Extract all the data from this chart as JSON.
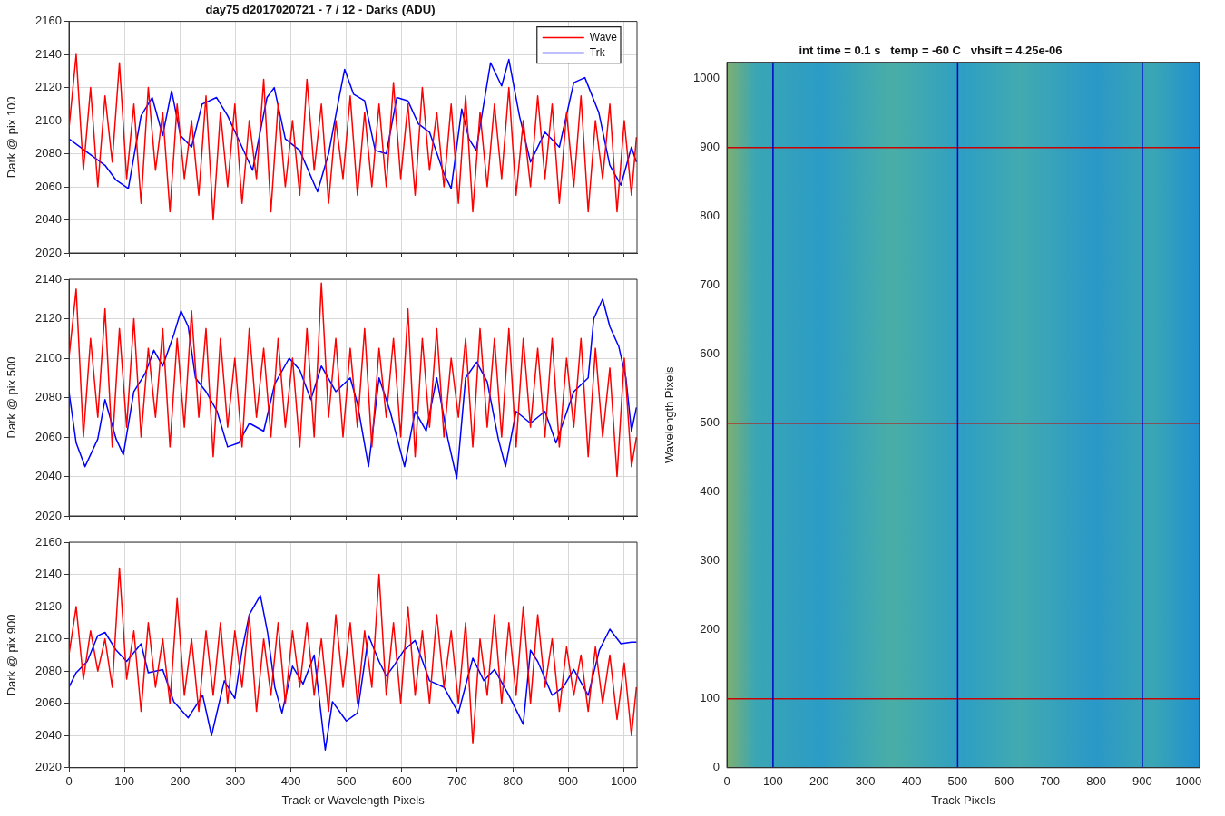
{
  "chart_data": [
    {
      "type": "line",
      "title": "day75 d2017020721 - 7 / 12 - Darks (ADU)",
      "ylabel": "Dark @ pix 100",
      "xlim": [
        0,
        1024
      ],
      "xticks": [
        0,
        100,
        200,
        300,
        400,
        500,
        600,
        700,
        800,
        900,
        1000
      ],
      "ylim": [
        2020,
        2160
      ],
      "yticks": [
        2020,
        2040,
        2060,
        2080,
        2100,
        2120,
        2140,
        2160
      ],
      "grid": true,
      "legend": "top right",
      "tick_labels": "y",
      "series": [
        {
          "name": "Wave",
          "color": "#ff0000",
          "x": [
            0,
            13,
            26,
            39,
            52,
            65,
            78,
            91,
            104,
            117,
            130,
            143,
            156,
            169,
            182,
            195,
            208,
            221,
            234,
            247,
            260,
            273,
            286,
            299,
            312,
            325,
            338,
            351,
            364,
            377,
            390,
            403,
            416,
            429,
            442,
            455,
            468,
            481,
            494,
            507,
            520,
            533,
            546,
            559,
            572,
            585,
            598,
            611,
            624,
            637,
            650,
            663,
            676,
            689,
            702,
            715,
            728,
            741,
            754,
            767,
            780,
            793,
            806,
            819,
            832,
            845,
            858,
            871,
            884,
            897,
            910,
            923,
            936,
            949,
            962,
            975,
            988,
            1001,
            1014,
            1023
          ],
          "values": [
            2095,
            2140,
            2070,
            2120,
            2060,
            2115,
            2075,
            2135,
            2065,
            2110,
            2050,
            2120,
            2070,
            2105,
            2045,
            2110,
            2065,
            2100,
            2055,
            2115,
            2040,
            2105,
            2060,
            2110,
            2050,
            2100,
            2065,
            2125,
            2045,
            2110,
            2060,
            2100,
            2055,
            2125,
            2070,
            2110,
            2050,
            2100,
            2065,
            2115,
            2055,
            2105,
            2060,
            2110,
            2060,
            2123,
            2065,
            2110,
            2055,
            2120,
            2070,
            2105,
            2060,
            2110,
            2050,
            2115,
            2045,
            2105,
            2060,
            2110,
            2065,
            2120,
            2055,
            2100,
            2060,
            2115,
            2065,
            2110,
            2050,
            2105,
            2060,
            2115,
            2045,
            2100,
            2065,
            2110,
            2045,
            2100,
            2055,
            2090
          ]
        },
        {
          "name": "Trk",
          "color": "#0000ff",
          "x": [
            0,
            65,
            85,
            107,
            130,
            150,
            169,
            185,
            201,
            221,
            240,
            266,
            286,
            312,
            331,
            357,
            370,
            390,
            416,
            448,
            468,
            487,
            497,
            513,
            533,
            552,
            572,
            591,
            611,
            630,
            650,
            676,
            689,
            708,
            721,
            734,
            760,
            780,
            793,
            812,
            832,
            858,
            884,
            910,
            930,
            955,
            975,
            995,
            1014,
            1023
          ],
          "values": [
            2089,
            2073,
            2064,
            2059,
            2103,
            2114,
            2091,
            2118,
            2091,
            2084,
            2110,
            2114,
            2103,
            2084,
            2070,
            2114,
            2120,
            2089,
            2082,
            2057,
            2080,
            2114,
            2131,
            2116,
            2112,
            2082,
            2080,
            2114,
            2112,
            2098,
            2093,
            2068,
            2059,
            2107,
            2089,
            2082,
            2135,
            2121,
            2137,
            2103,
            2075,
            2093,
            2084,
            2123,
            2126,
            2105,
            2073,
            2061,
            2084,
            2075
          ]
        }
      ]
    },
    {
      "type": "line",
      "ylabel": "Dark @ pix 500",
      "xlim": [
        0,
        1024
      ],
      "xticks": [
        0,
        100,
        200,
        300,
        400,
        500,
        600,
        700,
        800,
        900,
        1000
      ],
      "ylim": [
        2020,
        2140
      ],
      "yticks": [
        2020,
        2040,
        2060,
        2080,
        2100,
        2120,
        2140
      ],
      "grid": true,
      "tick_labels": "y",
      "series": [
        {
          "color": "#ff0000",
          "x": [
            0,
            13,
            26,
            39,
            52,
            65,
            78,
            91,
            104,
            117,
            130,
            143,
            156,
            169,
            182,
            195,
            208,
            221,
            234,
            247,
            260,
            273,
            286,
            299,
            312,
            325,
            338,
            351,
            364,
            377,
            390,
            403,
            416,
            429,
            442,
            455,
            468,
            481,
            494,
            507,
            520,
            533,
            546,
            559,
            572,
            585,
            598,
            611,
            624,
            637,
            650,
            663,
            676,
            689,
            702,
            715,
            728,
            741,
            754,
            767,
            780,
            793,
            806,
            819,
            832,
            845,
            858,
            871,
            884,
            897,
            910,
            923,
            936,
            949,
            962,
            975,
            988,
            1001,
            1014,
            1023
          ],
          "values": [
            2100,
            2135,
            2060,
            2110,
            2070,
            2125,
            2055,
            2115,
            2065,
            2120,
            2060,
            2105,
            2070,
            2115,
            2055,
            2110,
            2065,
            2124,
            2070,
            2115,
            2050,
            2110,
            2065,
            2100,
            2055,
            2115,
            2070,
            2105,
            2060,
            2110,
            2065,
            2100,
            2055,
            2115,
            2060,
            2138,
            2070,
            2110,
            2060,
            2105,
            2065,
            2115,
            2055,
            2105,
            2070,
            2110,
            2060,
            2125,
            2050,
            2110,
            2065,
            2115,
            2060,
            2100,
            2070,
            2110,
            2055,
            2115,
            2065,
            2110,
            2060,
            2115,
            2055,
            2110,
            2065,
            2105,
            2060,
            2110,
            2055,
            2100,
            2065,
            2110,
            2050,
            2105,
            2060,
            2095,
            2040,
            2100,
            2045,
            2060
          ]
        },
        {
          "color": "#0000ff",
          "x": [
            0,
            13,
            29,
            52,
            65,
            85,
            98,
            117,
            137,
            153,
            169,
            189,
            202,
            215,
            228,
            247,
            267,
            286,
            306,
            325,
            351,
            371,
            397,
            416,
            436,
            455,
            481,
            507,
            520,
            540,
            559,
            579,
            605,
            624,
            644,
            663,
            683,
            699,
            715,
            735,
            754,
            774,
            787,
            806,
            832,
            858,
            878,
            910,
            936,
            946,
            962,
            975,
            991,
            1004,
            1014,
            1023
          ],
          "values": [
            2083,
            2057,
            2045,
            2059,
            2079,
            2059,
            2051,
            2083,
            2092,
            2104,
            2096,
            2112,
            2124,
            2116,
            2090,
            2083,
            2073,
            2055,
            2057,
            2067,
            2063,
            2087,
            2100,
            2094,
            2079,
            2096,
            2083,
            2090,
            2077,
            2045,
            2090,
            2073,
            2045,
            2073,
            2063,
            2090,
            2059,
            2039,
            2090,
            2098,
            2088,
            2059,
            2045,
            2073,
            2067,
            2073,
            2057,
            2083,
            2090,
            2120,
            2130,
            2116,
            2106,
            2090,
            2063,
            2075
          ]
        }
      ]
    },
    {
      "type": "line",
      "xlabel": "Track or Wavelength Pixels",
      "ylabel": "Dark @ pix 900",
      "xlim": [
        0,
        1024
      ],
      "xticks": [
        0,
        100,
        200,
        300,
        400,
        500,
        600,
        700,
        800,
        900,
        1000
      ],
      "ylim": [
        2020,
        2160
      ],
      "yticks": [
        2020,
        2040,
        2060,
        2080,
        2100,
        2120,
        2140,
        2160
      ],
      "grid": true,
      "series": [
        {
          "color": "#ff0000",
          "x": [
            0,
            13,
            26,
            39,
            52,
            65,
            78,
            91,
            104,
            117,
            130,
            143,
            156,
            169,
            182,
            195,
            208,
            221,
            234,
            247,
            260,
            273,
            286,
            299,
            312,
            325,
            338,
            351,
            364,
            377,
            390,
            403,
            416,
            429,
            442,
            455,
            468,
            481,
            494,
            507,
            520,
            533,
            546,
            559,
            572,
            585,
            598,
            611,
            624,
            637,
            650,
            663,
            676,
            689,
            702,
            715,
            728,
            741,
            754,
            767,
            780,
            793,
            806,
            819,
            832,
            845,
            858,
            871,
            884,
            897,
            910,
            923,
            936,
            949,
            962,
            975,
            988,
            1001,
            1014,
            1023
          ],
          "values": [
            2090,
            2120,
            2075,
            2105,
            2080,
            2100,
            2070,
            2144,
            2075,
            2105,
            2055,
            2110,
            2070,
            2100,
            2060,
            2125,
            2065,
            2100,
            2055,
            2105,
            2065,
            2110,
            2060,
            2105,
            2070,
            2115,
            2055,
            2100,
            2065,
            2110,
            2060,
            2105,
            2070,
            2110,
            2065,
            2100,
            2055,
            2115,
            2070,
            2110,
            2060,
            2105,
            2070,
            2140,
            2065,
            2110,
            2060,
            2120,
            2065,
            2105,
            2060,
            2115,
            2070,
            2105,
            2060,
            2110,
            2035,
            2100,
            2065,
            2115,
            2060,
            2110,
            2065,
            2120,
            2060,
            2115,
            2070,
            2100,
            2055,
            2095,
            2065,
            2090,
            2055,
            2095,
            2060,
            2090,
            2050,
            2085,
            2040,
            2070
          ]
        },
        {
          "color": "#0000ff",
          "x": [
            0,
            13,
            33,
            52,
            65,
            85,
            104,
            130,
            143,
            169,
            189,
            215,
            241,
            257,
            280,
            299,
            312,
            325,
            345,
            358,
            371,
            384,
            403,
            422,
            442,
            462,
            475,
            500,
            520,
            540,
            559,
            572,
            585,
            604,
            624,
            650,
            676,
            702,
            728,
            748,
            767,
            793,
            819,
            832,
            845,
            871,
            891,
            910,
            936,
            956,
            975,
            995,
            1014,
            1023
          ],
          "values": [
            2070,
            2079,
            2086,
            2102,
            2104,
            2093,
            2086,
            2097,
            2079,
            2081,
            2061,
            2051,
            2065,
            2040,
            2074,
            2063,
            2093,
            2115,
            2127,
            2104,
            2070,
            2054,
            2083,
            2072,
            2090,
            2031,
            2061,
            2049,
            2054,
            2102,
            2086,
            2077,
            2083,
            2093,
            2099,
            2074,
            2070,
            2054,
            2088,
            2074,
            2081,
            2065,
            2047,
            2093,
            2086,
            2065,
            2070,
            2081,
            2065,
            2093,
            2106,
            2097,
            2098,
            2098
          ]
        }
      ]
    },
    {
      "type": "line",
      "title": "int time = 0.1 s   temp = -60 C   vhsift = 4.25e-06",
      "xlabel": "Track Pixels",
      "ylabel": "Wavelength Pixels",
      "xlim": [
        0,
        1024
      ],
      "xticks": [
        0,
        100,
        200,
        300,
        400,
        500,
        600,
        700,
        800,
        900,
        1000
      ],
      "ylim": [
        0,
        1024
      ],
      "yticks": [
        0,
        100,
        200,
        300,
        400,
        500,
        600,
        700,
        800,
        900,
        1000
      ],
      "series": [
        {
          "color": "#0000cc",
          "x": [
            100,
            100
          ],
          "values": [
            0,
            1024
          ]
        },
        {
          "color": "#0000cc",
          "x": [
            500,
            500
          ],
          "values": [
            0,
            1024
          ]
        },
        {
          "color": "#0000cc",
          "x": [
            900,
            900
          ],
          "values": [
            0,
            1024
          ]
        },
        {
          "color": "#cc0000",
          "x": [
            0,
            1024
          ],
          "values": [
            100,
            100
          ]
        },
        {
          "color": "#cc0000",
          "x": [
            0,
            1024
          ],
          "values": [
            500,
            500
          ]
        },
        {
          "color": "#cc0000",
          "x": [
            0,
            1024
          ],
          "values": [
            900,
            900
          ]
        }
      ]
    }
  ]
}
